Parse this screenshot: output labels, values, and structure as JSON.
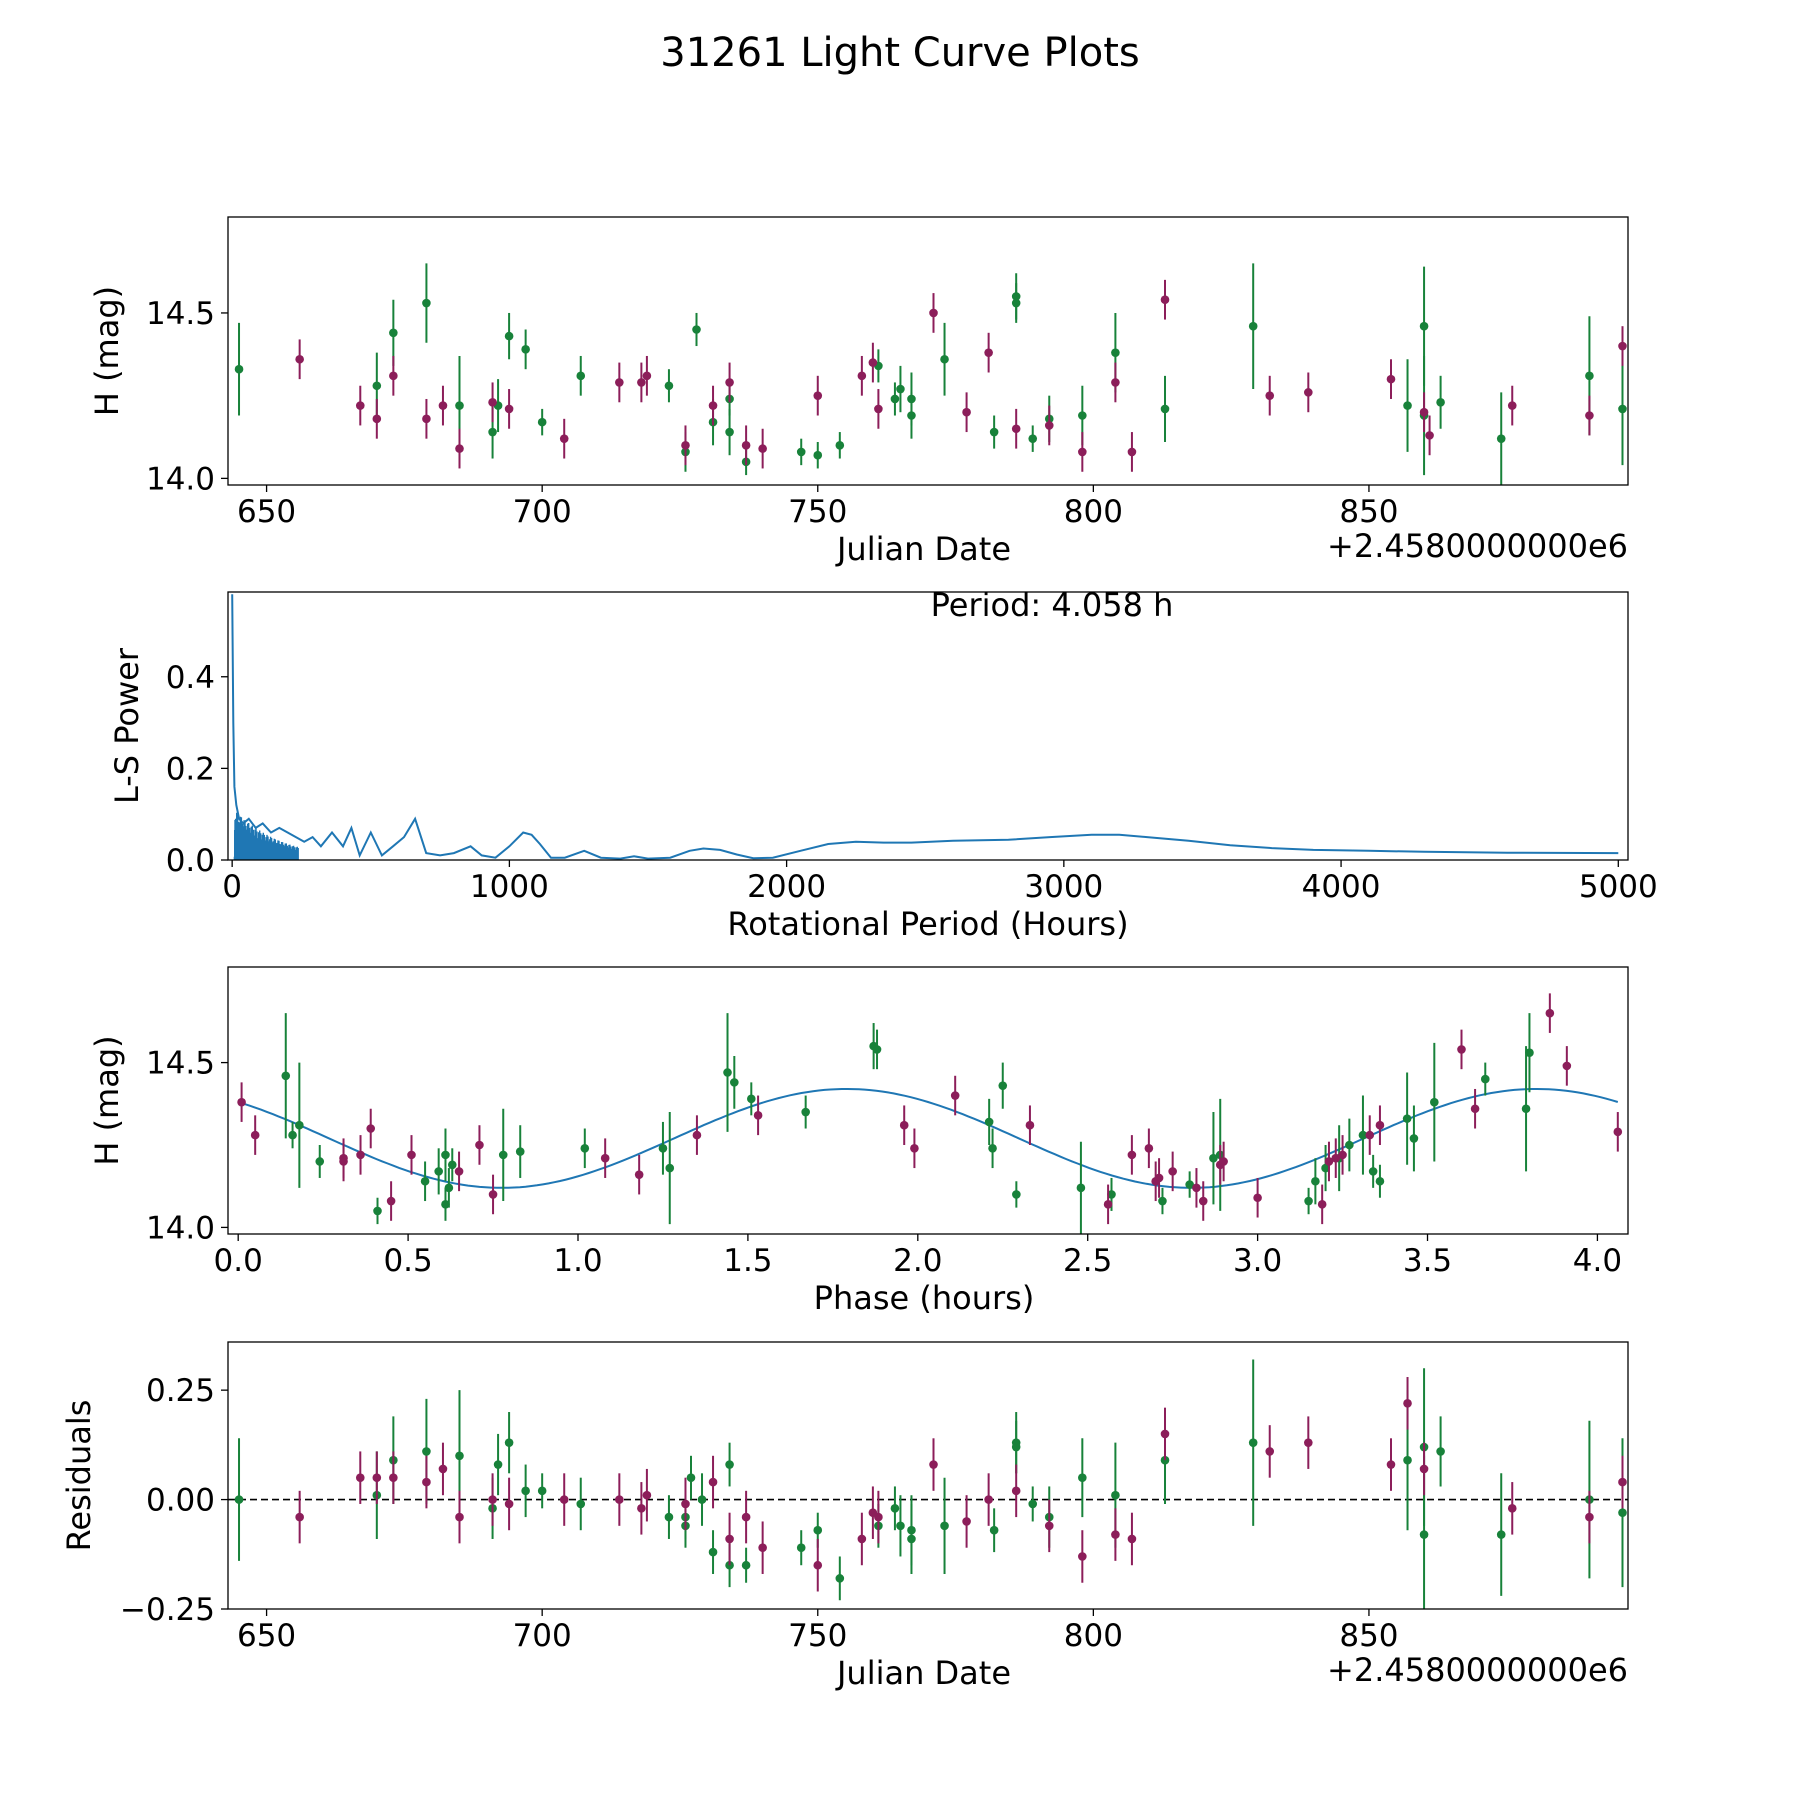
{
  "figure": {
    "title": "31261 Light Curve Plots"
  },
  "colors": {
    "band_a": "#18823a",
    "band_b": "#8c1e5a",
    "fit_line": "#1f77b4",
    "frame": "#000000"
  },
  "chart_data": [
    {
      "type": "scatter",
      "name": "time-series",
      "title": "",
      "xlabel": "Julian Date",
      "ylabel": "H (mag)",
      "offset_text": "+2.4580000000e6",
      "xlim": [
        643,
        897
      ],
      "ylim": [
        13.98,
        14.79
      ],
      "xticks": [
        650,
        700,
        750,
        800,
        850
      ],
      "yticks": [
        14.0,
        14.5
      ],
      "series": [
        {
          "name": "band_a",
          "color": "#18823a",
          "x": [
            645,
            670,
            673,
            679,
            685,
            691,
            692,
            694,
            697,
            700,
            707,
            723,
            726,
            728,
            731,
            734,
            734,
            737,
            747,
            750,
            754,
            761,
            764,
            765,
            767,
            767,
            773,
            782,
            786,
            786,
            789,
            792,
            798,
            804,
            813,
            829,
            857,
            860,
            860,
            863,
            874,
            890,
            896
          ],
          "y": [
            14.33,
            14.28,
            14.44,
            14.53,
            14.22,
            14.14,
            14.22,
            14.43,
            14.39,
            14.17,
            14.31,
            14.28,
            14.08,
            14.45,
            14.17,
            14.24,
            14.14,
            14.05,
            14.08,
            14.07,
            14.1,
            14.34,
            14.24,
            14.27,
            14.24,
            14.19,
            14.36,
            14.14,
            14.55,
            14.53,
            14.12,
            14.18,
            14.19,
            14.38,
            14.21,
            14.46,
            14.22,
            14.19,
            14.46,
            14.23,
            14.12,
            14.31,
            14.21
          ],
          "err": [
            0.14,
            0.1,
            0.1,
            0.12,
            0.15,
            0.08,
            0.08,
            0.07,
            0.06,
            0.04,
            0.06,
            0.05,
            0.06,
            0.05,
            0.07,
            0.05,
            0.07,
            0.04,
            0.04,
            0.04,
            0.04,
            0.05,
            0.05,
            0.07,
            0.08,
            0.07,
            0.11,
            0.05,
            0.07,
            0.06,
            0.04,
            0.07,
            0.09,
            0.12,
            0.1,
            0.19,
            0.14,
            0.18,
            0.18,
            0.08,
            0.14,
            0.18,
            0.17
          ]
        },
        {
          "name": "band_b",
          "color": "#8c1e5a",
          "x": [
            656,
            667,
            670,
            673,
            679,
            682,
            685,
            691,
            694,
            704,
            714,
            718,
            719,
            726,
            731,
            734,
            737,
            740,
            750,
            758,
            760,
            761,
            771,
            777,
            781,
            786,
            792,
            798,
            804,
            807,
            813,
            832,
            839,
            854,
            860,
            861,
            876,
            890,
            896
          ],
          "y": [
            14.36,
            14.22,
            14.18,
            14.31,
            14.18,
            14.22,
            14.09,
            14.23,
            14.21,
            14.12,
            14.29,
            14.29,
            14.31,
            14.1,
            14.22,
            14.29,
            14.1,
            14.09,
            14.25,
            14.31,
            14.35,
            14.21,
            14.5,
            14.2,
            14.38,
            14.15,
            14.16,
            14.08,
            14.29,
            14.08,
            14.54,
            14.25,
            14.26,
            14.3,
            14.2,
            14.13,
            14.22,
            14.19,
            14.4
          ]
        }
      ]
    },
    {
      "type": "line",
      "name": "periodogram",
      "title": "",
      "xlabel": "Rotational Period (Hours)",
      "ylabel": "L-S Power",
      "annotation": "Period: 4.058 h",
      "xlim": [
        -15,
        5035
      ],
      "ylim": [
        0,
        0.585
      ],
      "xticks": [
        0,
        1000,
        2000,
        3000,
        4000,
        5000
      ],
      "yticks": [
        0.0,
        0.2,
        0.4
      ],
      "series": [
        {
          "name": "ls_power",
          "color": "#1f77b4",
          "x": [
            0,
            4,
            8,
            15,
            25,
            40,
            60,
            85,
            110,
            140,
            170,
            200,
            230,
            260,
            290,
            320,
            360,
            400,
            430,
            460,
            500,
            540,
            580,
            620,
            660,
            700,
            750,
            800,
            860,
            900,
            950,
            1000,
            1050,
            1080,
            1110,
            1150,
            1200,
            1270,
            1330,
            1400,
            1450,
            1500,
            1580,
            1650,
            1700,
            1760,
            1820,
            1880,
            1950,
            2050,
            2150,
            2250,
            2350,
            2450,
            2600,
            2800,
            2950,
            3100,
            3200,
            3300,
            3450,
            3600,
            3750,
            3900,
            4100,
            4300,
            4600,
            5000
          ],
          "y": [
            0.58,
            0.3,
            0.16,
            0.12,
            0.09,
            0.08,
            0.09,
            0.07,
            0.08,
            0.06,
            0.07,
            0.06,
            0.05,
            0.04,
            0.05,
            0.03,
            0.06,
            0.03,
            0.07,
            0.01,
            0.06,
            0.01,
            0.03,
            0.05,
            0.09,
            0.015,
            0.01,
            0.015,
            0.03,
            0.01,
            0.005,
            0.03,
            0.06,
            0.055,
            0.035,
            0.005,
            0.005,
            0.02,
            0.005,
            0.003,
            0.008,
            0.003,
            0.005,
            0.02,
            0.025,
            0.022,
            0.012,
            0.004,
            0.005,
            0.02,
            0.035,
            0.04,
            0.038,
            0.038,
            0.042,
            0.044,
            0.05,
            0.055,
            0.055,
            0.05,
            0.042,
            0.032,
            0.026,
            0.022,
            0.02,
            0.018,
            0.016,
            0.015
          ]
        }
      ]
    },
    {
      "type": "scatter",
      "name": "phase-folded",
      "title": "",
      "xlabel": "Phase (hours)",
      "ylabel": "H (mag)",
      "xlim": [
        -0.03,
        4.09
      ],
      "ylim": [
        13.98,
        14.79
      ],
      "xticks": [
        0.0,
        0.5,
        1.0,
        1.5,
        2.0,
        2.5,
        3.0,
        3.5,
        4.0
      ],
      "tick_labels": [
        "0.0",
        "0.5",
        "1.0",
        "1.5",
        "2.0",
        "2.5",
        "3.0",
        "3.5",
        "4.0"
      ],
      "yticks": [
        14.0,
        14.5
      ],
      "fit": {
        "mean": 14.27,
        "amplitude": 0.15,
        "peak_phase": 1.79,
        "period": 2.03
      },
      "series": [
        {
          "name": "band_a",
          "color": "#18823a",
          "x": [
            0.14,
            0.16,
            0.18,
            0.24,
            0.41,
            0.55,
            0.59,
            0.61,
            0.61,
            0.62,
            0.63,
            0.78,
            0.83,
            1.02,
            1.25,
            1.27,
            1.44,
            1.46,
            1.51,
            1.67,
            1.87,
            1.88,
            2.21,
            2.22,
            2.25,
            2.29,
            2.48,
            2.57,
            2.72,
            2.8,
            2.87,
            2.89,
            3.15,
            3.17,
            3.2,
            3.24,
            3.27,
            3.31,
            3.34,
            3.36,
            3.44,
            3.46,
            3.52,
            3.67,
            3.79,
            3.8
          ],
          "y": [
            14.46,
            14.28,
            14.31,
            14.2,
            14.05,
            14.14,
            14.17,
            14.22,
            14.07,
            14.12,
            14.19,
            14.22,
            14.23,
            14.24,
            14.24,
            14.18,
            14.47,
            14.44,
            14.39,
            14.35,
            14.55,
            14.54,
            14.32,
            14.24,
            14.43,
            14.1,
            14.12,
            14.1,
            14.08,
            14.13,
            14.21,
            14.22,
            14.08,
            14.14,
            14.18,
            14.21,
            14.25,
            14.28,
            14.17,
            14.14,
            14.33,
            14.27,
            14.38,
            14.45,
            14.36,
            14.53
          ],
          "err": [
            0.19,
            0.04,
            0.19,
            0.05,
            0.04,
            0.06,
            0.07,
            0.08,
            0.05,
            0.06,
            0.05,
            0.14,
            0.08,
            0.06,
            0.08,
            0.17,
            0.18,
            0.08,
            0.05,
            0.05,
            0.07,
            0.06,
            0.07,
            0.06,
            0.07,
            0.04,
            0.14,
            0.05,
            0.04,
            0.04,
            0.14,
            0.17,
            0.04,
            0.07,
            0.07,
            0.1,
            0.08,
            0.12,
            0.05,
            0.05,
            0.14,
            0.1,
            0.18,
            0.05,
            0.19,
            0.12
          ]
        },
        {
          "name": "band_b",
          "color": "#8c1e5a",
          "x": [
            0.01,
            0.05,
            0.31,
            0.31,
            0.36,
            0.39,
            0.45,
            0.51,
            0.65,
            0.71,
            0.75,
            1.08,
            1.18,
            1.35,
            1.53,
            1.96,
            1.99,
            2.11,
            2.33,
            2.56,
            2.63,
            2.68,
            2.7,
            2.71,
            2.75,
            2.82,
            2.84,
            2.89,
            2.9,
            3.0,
            3.19,
            3.21,
            3.23,
            3.25,
            3.33,
            3.36,
            3.6,
            3.64,
            3.86,
            3.91,
            4.06
          ],
          "y": [
            14.38,
            14.28,
            14.21,
            14.2,
            14.22,
            14.3,
            14.08,
            14.22,
            14.17,
            14.25,
            14.1,
            14.21,
            14.16,
            14.28,
            14.34,
            14.31,
            14.24,
            14.4,
            14.31,
            14.07,
            14.22,
            14.24,
            14.14,
            14.15,
            14.17,
            14.12,
            14.08,
            14.19,
            14.2,
            14.09,
            14.07,
            14.2,
            14.21,
            14.22,
            14.28,
            14.31,
            14.54,
            14.36,
            14.65,
            14.49,
            14.29
          ]
        }
      ]
    },
    {
      "type": "scatter",
      "name": "residuals",
      "title": "",
      "xlabel": "Julian Date",
      "ylabel": "Residuals",
      "offset_text": "+2.4580000000e6",
      "xlim": [
        643,
        897
      ],
      "ylim": [
        -0.25,
        0.36
      ],
      "xticks": [
        650,
        700,
        750,
        800,
        850
      ],
      "yticks": [
        -0.25,
        0.0,
        0.25
      ],
      "tick_labels": [
        "−0.25",
        "0.00",
        "0.25"
      ],
      "zero_line": 0,
      "series": [
        {
          "name": "band_a",
          "color": "#18823a",
          "x": [
            645,
            670,
            673,
            679,
            685,
            691,
            692,
            694,
            697,
            700,
            707,
            723,
            726,
            726,
            727,
            729,
            731,
            734,
            734,
            737,
            747,
            750,
            754,
            761,
            764,
            765,
            767,
            767,
            773,
            782,
            786,
            786,
            789,
            792,
            798,
            804,
            813,
            829,
            857,
            860,
            860,
            863,
            874,
            890,
            896
          ],
          "y": [
            0.0,
            0.01,
            0.09,
            0.11,
            0.1,
            -0.02,
            0.08,
            0.13,
            0.02,
            0.02,
            -0.01,
            -0.04,
            -0.06,
            -0.04,
            0.05,
            0.0,
            -0.12,
            0.08,
            -0.15,
            -0.15,
            -0.11,
            -0.07,
            -0.18,
            -0.06,
            -0.02,
            -0.06,
            -0.07,
            -0.09,
            -0.06,
            -0.07,
            0.13,
            0.12,
            -0.01,
            -0.04,
            0.05,
            0.01,
            0.09,
            0.13,
            0.09,
            0.12,
            -0.08,
            0.11,
            -0.08,
            0.0,
            -0.03
          ],
          "err": [
            0.14,
            0.1,
            0.1,
            0.12,
            0.15,
            0.07,
            0.07,
            0.07,
            0.06,
            0.04,
            0.06,
            0.05,
            0.05,
            0.05,
            0.05,
            0.06,
            0.05,
            0.05,
            0.05,
            0.04,
            0.04,
            0.04,
            0.05,
            0.05,
            0.05,
            0.07,
            0.08,
            0.08,
            0.11,
            0.05,
            0.07,
            0.06,
            0.04,
            0.07,
            0.09,
            0.12,
            0.1,
            0.19,
            0.16,
            0.18,
            0.18,
            0.08,
            0.14,
            0.18,
            0.17
          ]
        },
        {
          "name": "band_b",
          "color": "#8c1e5a",
          "x": [
            656,
            667,
            670,
            673,
            679,
            682,
            685,
            691,
            694,
            704,
            714,
            718,
            719,
            726,
            731,
            734,
            737,
            740,
            750,
            758,
            760,
            761,
            771,
            777,
            781,
            786,
            792,
            798,
            804,
            807,
            813,
            832,
            839,
            854,
            857,
            860,
            876,
            890,
            896
          ],
          "y": [
            -0.04,
            0.05,
            0.05,
            0.05,
            0.04,
            0.07,
            -0.04,
            0.0,
            -0.01,
            0.0,
            0.0,
            -0.02,
            0.01,
            -0.01,
            0.04,
            -0.09,
            -0.04,
            -0.11,
            -0.15,
            -0.09,
            -0.03,
            -0.04,
            0.08,
            -0.05,
            0.0,
            0.02,
            -0.06,
            -0.13,
            -0.08,
            -0.09,
            0.15,
            0.11,
            0.13,
            0.08,
            0.22,
            0.07,
            -0.02,
            -0.04,
            0.04
          ]
        }
      ]
    }
  ]
}
